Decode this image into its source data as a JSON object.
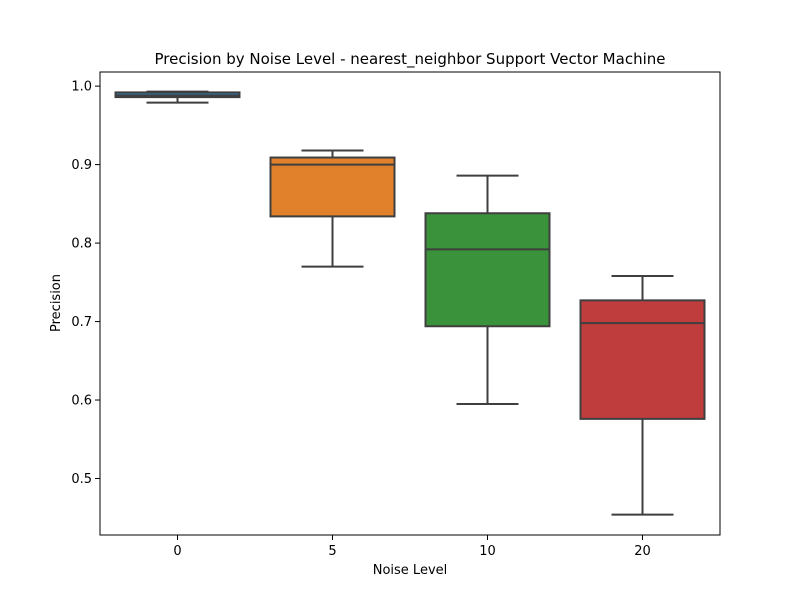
{
  "chart_data": {
    "type": "box",
    "title": "Precision by Noise Level - nearest_neighbor Support Vector Machine",
    "xlabel": "Noise Level",
    "ylabel": "Precision",
    "categories": [
      "0",
      "5",
      "10",
      "20"
    ],
    "ylim": [
      0.428,
      1.018
    ],
    "yticks": [
      0.5,
      0.6,
      0.7,
      0.8,
      0.9,
      1.0
    ],
    "ytick_labels": [
      "0.5",
      "0.6",
      "0.7",
      "0.8",
      "0.9",
      "1.0"
    ],
    "grid": false,
    "legend": "none",
    "boxes": [
      {
        "category": "0",
        "whisker_low": 0.979,
        "q1": 0.986,
        "median": 0.988,
        "q3": 0.992,
        "whisker_high": 0.993,
        "color": "#3274a1"
      },
      {
        "category": "5",
        "whisker_low": 0.77,
        "q1": 0.834,
        "median": 0.9,
        "q3": 0.909,
        "whisker_high": 0.918,
        "color": "#e1812c"
      },
      {
        "category": "10",
        "whisker_low": 0.595,
        "q1": 0.694,
        "median": 0.792,
        "q3": 0.838,
        "whisker_high": 0.886,
        "color": "#3a923a"
      },
      {
        "category": "20",
        "whisker_low": 0.454,
        "q1": 0.576,
        "median": 0.698,
        "q3": 0.727,
        "whisker_high": 0.758,
        "color": "#c03d3e"
      }
    ]
  }
}
